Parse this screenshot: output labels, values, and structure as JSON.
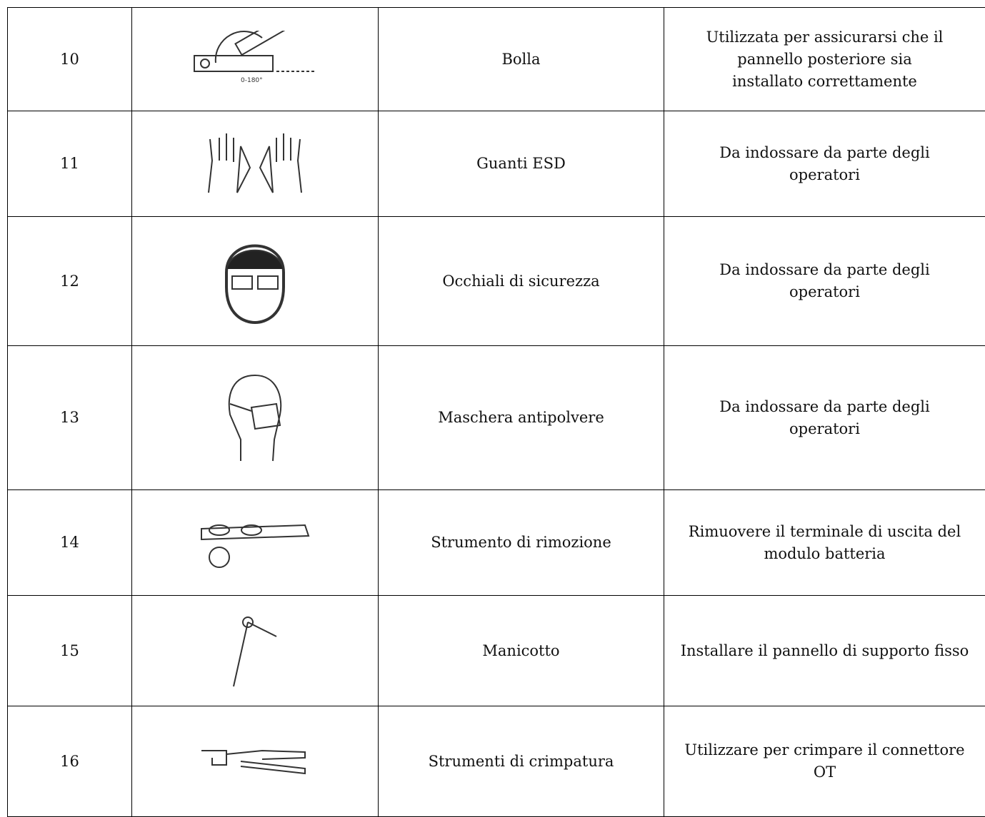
{
  "table": {
    "rows": [
      {
        "number": "10",
        "icon_text": "0-180°",
        "name": "Bolla",
        "description": [
          "Utilizzata per assicurarsi che il",
          "pannello posteriore sia",
          "installato correttamente"
        ]
      },
      {
        "number": "11",
        "name": "Guanti ESD",
        "description": [
          "Da indossare da parte degli",
          "operatori"
        ]
      },
      {
        "number": "12",
        "name": "Occhiali di sicurezza",
        "description": [
          "Da indossare da parte degli",
          "operatori"
        ]
      },
      {
        "number": "13",
        "name": "Maschera antipolvere",
        "description": [
          "Da indossare da parte degli",
          "operatori"
        ]
      },
      {
        "number": "14",
        "name": "Strumento di rimozione",
        "description": [
          "Rimuovere il terminale di uscita del",
          "modulo batteria"
        ]
      },
      {
        "number": "15",
        "name": "Manicotto",
        "description": [
          "Installare il pannello di supporto fisso"
        ]
      },
      {
        "number": "16",
        "name": "Strumenti di crimpatura",
        "description": [
          "Utilizzare per crimpare il connettore",
          "OT"
        ]
      }
    ]
  }
}
